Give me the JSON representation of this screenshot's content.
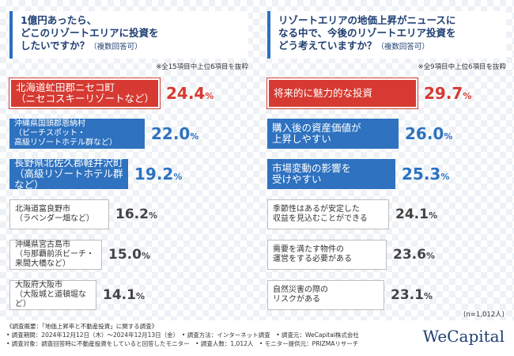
{
  "chart_data": [
    {
      "type": "bar",
      "title": "1億円あったら、\nどこのリゾートエリアに投資を\nしたいですか？",
      "subtitle": "（複数回答可）",
      "note": "※全15項目中上位6項目を抜粋",
      "categories": [
        "北海道虻田郡ニセコ町\n（ニセコスキーリゾートなど）",
        "沖縄県国頭郡恩納村\n（ビーチスポット・\n高級リゾートホテル群など）",
        "長野県北佐久郡軽井沢町\n（高級リゾートホテル群など）",
        "北海道富良野市\n（ラベンダー畑など）",
        "沖縄県宮古島市\n（与那覇前浜ビーチ・来間大橋など）",
        "大阪府大阪市\n（大阪城と道頓堀など）"
      ],
      "values": [
        24.4,
        22.0,
        19.2,
        16.2,
        15.0,
        14.1
      ],
      "value_labels": [
        "24.4",
        "22.0",
        "19.2",
        "16.2",
        "15.0",
        "14.1"
      ],
      "unit": "%",
      "styles": [
        "red",
        "blue",
        "blue",
        "gray",
        "gray",
        "gray"
      ]
    },
    {
      "type": "bar",
      "title": "リゾートエリアの地価上昇がニュースに\nなる中で、今後のリゾートエリア投資を\nどう考えていますか？",
      "subtitle": "（複数回答可）",
      "note": "※全9項目中上位6項目を抜粋",
      "categories": [
        "将来的に魅力的な投資",
        "購入後の資産価値が\n上昇しやすい",
        "市場変動の影響を\n受けやすい",
        "季節性はあるが安定した\n収益を見込むことができる",
        "需要を満たす物件の\n運営をする必要がある",
        "自然災害の際の\nリスクがある"
      ],
      "values": [
        29.7,
        26.0,
        25.3,
        24.1,
        23.6,
        23.1
      ],
      "value_labels": [
        "29.7",
        "26.0",
        "25.3",
        "24.1",
        "23.6",
        "23.1"
      ],
      "unit": "%",
      "styles": [
        "red",
        "blue",
        "blue",
        "gray",
        "gray",
        "gray"
      ]
    }
  ],
  "sample": "(n=1,012人)",
  "footer": {
    "line1": "《調査概要：「地価上昇率と不動産投資」に関する調査》",
    "line2": "• 調査期間：2024年12月12日（木）～2024年12月13日（金）　• 調査方法：インターネット調査　• 調査元：WeCapital株式会社",
    "line3": "• 調査対象：調査回答時に不動産投資をしていると回答したモニター　• 調査人数：1,012人　• モニター提供元：PRIZMAリサーチ",
    "logo": "WeCapital"
  }
}
